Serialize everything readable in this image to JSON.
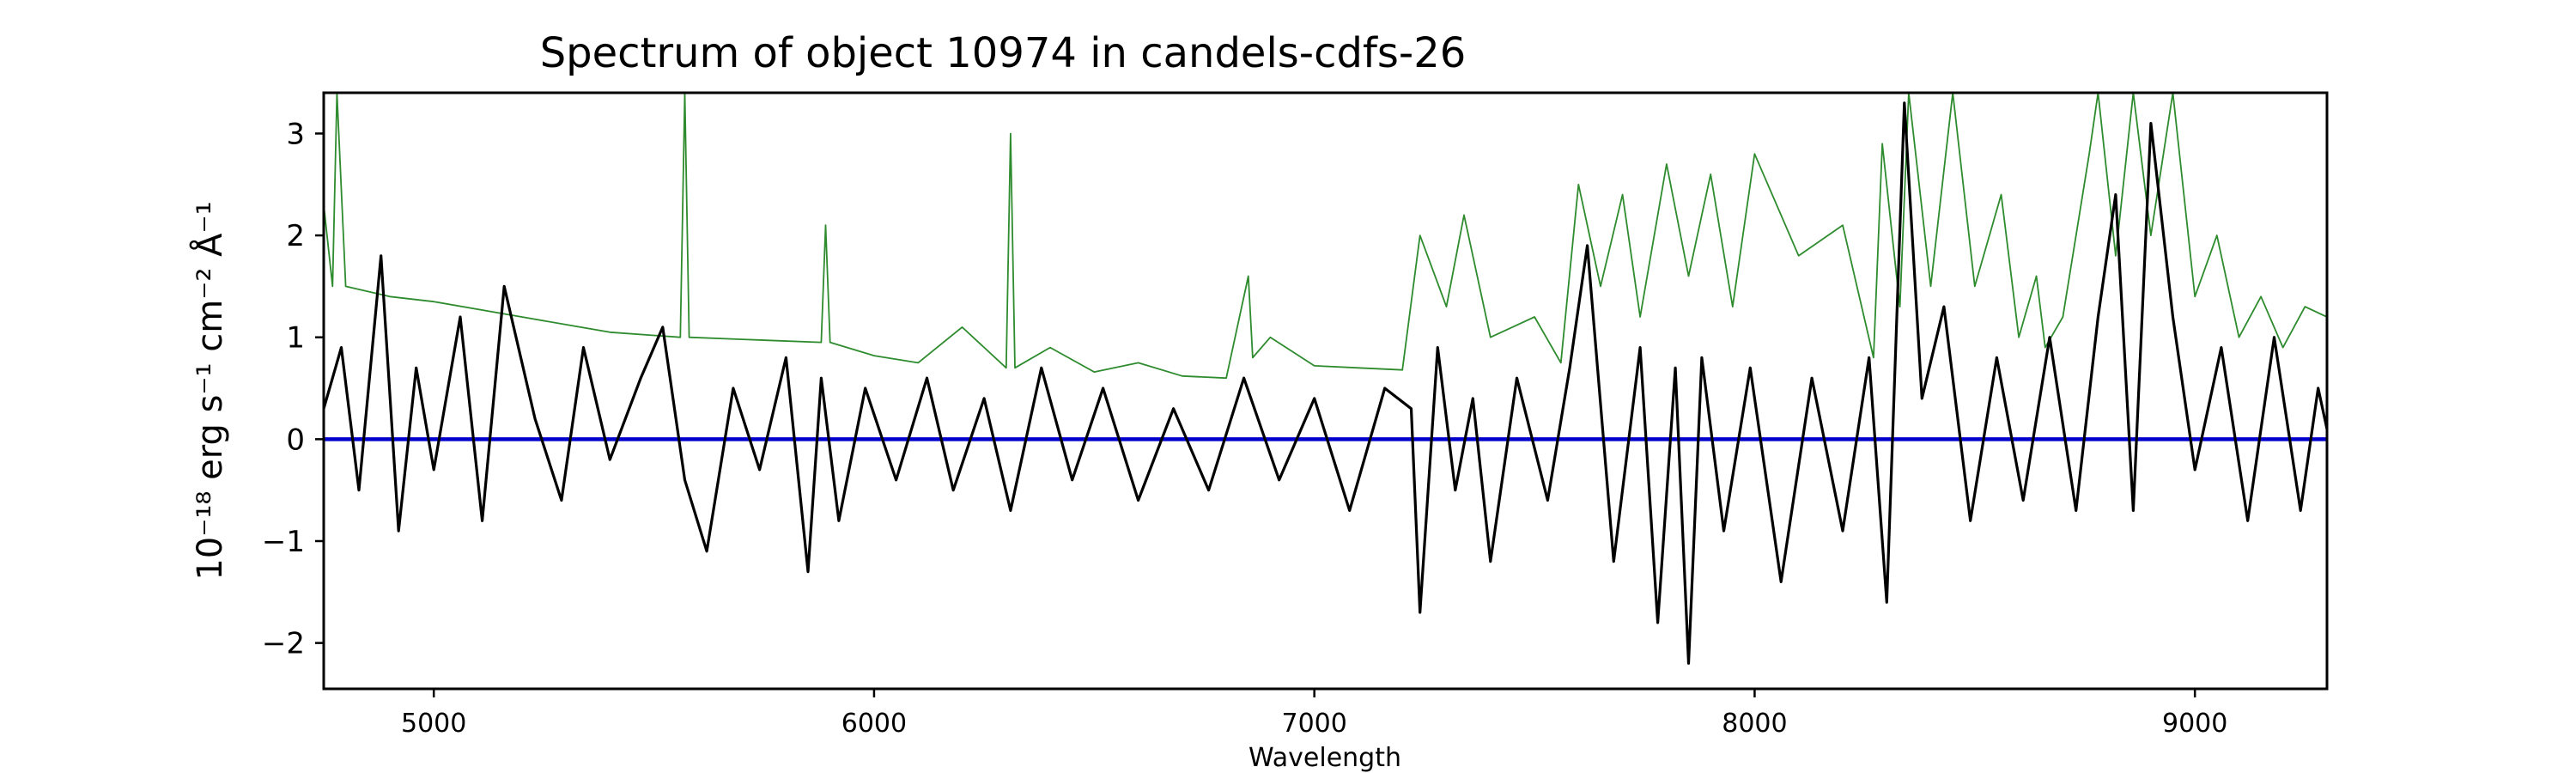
{
  "chart_data": {
    "type": "line",
    "title": "Spectrum of object 10974 in candels-cdfs-26",
    "xlabel": "Wavelength",
    "ylabel": "10⁻¹⁸ erg s⁻¹ cm⁻² Å⁻¹",
    "xlim": [
      4750,
      9300
    ],
    "ylim": [
      -2.45,
      3.4
    ],
    "x_ticks": [
      5000,
      6000,
      7000,
      8000,
      9000
    ],
    "y_ticks": [
      -2,
      -1,
      0,
      1,
      2,
      3
    ],
    "grid": false,
    "colors": {
      "flux": "#000000",
      "error": "#2e8b2e",
      "zero": "#0000cc",
      "axes": "#000000"
    },
    "series": [
      {
        "key": "flux",
        "x": [
          4750,
          4790,
          4830,
          4880,
          4920,
          4960,
          5000,
          5060,
          5110,
          5160,
          5230,
          5290,
          5340,
          5400,
          5470,
          5520,
          5570,
          5620,
          5680,
          5740,
          5800,
          5850,
          5880,
          5920,
          5980,
          6050,
          6120,
          6180,
          6250,
          6310,
          6380,
          6450,
          6520,
          6600,
          6680,
          6760,
          6840,
          6920,
          7000,
          7080,
          7160,
          7220,
          7240,
          7280,
          7320,
          7360,
          7400,
          7460,
          7530,
          7580,
          7620,
          7680,
          7740,
          7780,
          7820,
          7850,
          7880,
          7930,
          7990,
          8060,
          8130,
          8200,
          8260,
          8300,
          8340,
          8380,
          8430,
          8490,
          8550,
          8610,
          8670,
          8730,
          8780,
          8820,
          8860,
          8900,
          8950,
          9000,
          9060,
          9120,
          9180,
          9240,
          9280,
          9300
        ],
        "y": [
          0.3,
          0.9,
          -0.5,
          1.8,
          -0.9,
          0.7,
          -0.3,
          1.2,
          -0.8,
          1.5,
          0.2,
          -0.6,
          0.9,
          -0.2,
          0.6,
          1.1,
          -0.4,
          -1.1,
          0.5,
          -0.3,
          0.8,
          -1.3,
          0.6,
          -0.8,
          0.5,
          -0.4,
          0.6,
          -0.5,
          0.4,
          -0.7,
          0.7,
          -0.4,
          0.5,
          -0.6,
          0.3,
          -0.5,
          0.6,
          -0.4,
          0.4,
          -0.7,
          0.5,
          0.3,
          -1.7,
          0.9,
          -0.5,
          0.4,
          -1.2,
          0.6,
          -0.6,
          0.7,
          1.9,
          -1.2,
          0.9,
          -1.8,
          0.7,
          -2.2,
          0.8,
          -0.9,
          0.7,
          -1.4,
          0.6,
          -0.9,
          0.8,
          -1.6,
          3.3,
          0.4,
          1.3,
          -0.8,
          0.8,
          -0.6,
          1.0,
          -0.7,
          1.2,
          2.4,
          -0.7,
          3.1,
          1.2,
          -0.3,
          0.9,
          -0.8,
          1.0,
          -0.7,
          0.5,
          0.1
        ]
      },
      {
        "key": "error",
        "x": [
          4750,
          4770,
          4780,
          4800,
          4900,
          5000,
          5200,
          5400,
          5560,
          5570,
          5580,
          5700,
          5880,
          5890,
          5900,
          6000,
          6100,
          6200,
          6300,
          6310,
          6320,
          6400,
          6500,
          6600,
          6700,
          6800,
          6850,
          6860,
          6900,
          7000,
          7100,
          7200,
          7240,
          7300,
          7340,
          7400,
          7500,
          7560,
          7600,
          7650,
          7700,
          7740,
          7800,
          7850,
          7900,
          7950,
          8000,
          8100,
          8200,
          8270,
          8290,
          8330,
          8350,
          8400,
          8450,
          8500,
          8560,
          8600,
          8640,
          8660,
          8700,
          8760,
          8780,
          8820,
          8860,
          8900,
          8950,
          9000,
          9050,
          9100,
          9150,
          9200,
          9250,
          9300
        ],
        "y": [
          2.3,
          1.5,
          3.4,
          1.5,
          1.4,
          1.35,
          1.2,
          1.05,
          1.0,
          3.4,
          1.0,
          0.98,
          0.95,
          2.1,
          0.95,
          0.82,
          0.75,
          1.1,
          0.7,
          3.0,
          0.7,
          0.9,
          0.66,
          0.75,
          0.62,
          0.6,
          1.6,
          0.8,
          1.0,
          0.72,
          0.7,
          0.68,
          2.0,
          1.3,
          2.2,
          1.0,
          1.2,
          0.75,
          2.5,
          1.5,
          2.4,
          1.2,
          2.7,
          1.6,
          2.6,
          1.3,
          2.8,
          1.8,
          2.1,
          0.8,
          2.9,
          1.3,
          3.4,
          1.5,
          3.4,
          1.5,
          2.4,
          1.0,
          1.6,
          0.9,
          1.2,
          2.8,
          3.4,
          1.8,
          3.4,
          2.0,
          3.4,
          1.4,
          2.0,
          1.0,
          1.4,
          0.9,
          1.3,
          1.2
        ]
      },
      {
        "key": "zero",
        "x": [
          4750,
          9300
        ],
        "y": [
          0,
          0
        ]
      }
    ]
  }
}
